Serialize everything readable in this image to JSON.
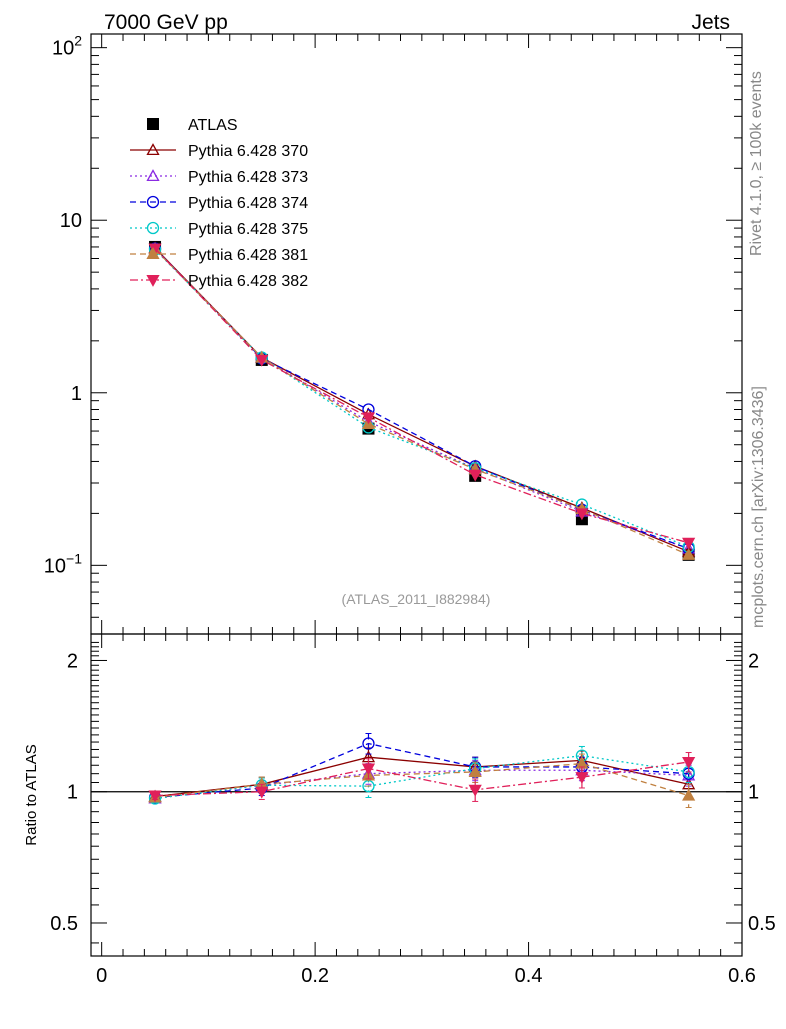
{
  "header": {
    "left": "7000 GeV pp",
    "right": "Jets"
  },
  "side_text": {
    "rivet": "Rivet 4.1.0, ≥ 100k events",
    "source": "mcplots.cern.ch [arXiv:1306.3436]"
  },
  "watermark": "(ATLAS_2011_I882984)",
  "chart_data": [
    {
      "type": "line",
      "panel": "main",
      "yscale": "log",
      "xlim": [
        -0.01,
        0.6
      ],
      "ylim": [
        0.04,
        120
      ],
      "xlabel": "",
      "ylabel": "",
      "y_tick_labels": [
        {
          "value": 100,
          "base": "10",
          "exp": "2"
        },
        {
          "value": 10,
          "base": "10",
          "exp": ""
        },
        {
          "value": 1,
          "base": "1",
          "exp": ""
        },
        {
          "value": 0.1,
          "base": "10",
          "exp": "−1"
        }
      ],
      "x": [
        0.05,
        0.15,
        0.25,
        0.35,
        0.45,
        0.55
      ],
      "reference": {
        "name": "ATLAS",
        "color": "#000000",
        "values": [
          7.0,
          1.55,
          0.62,
          0.33,
          0.185,
          0.115
        ]
      },
      "series": [
        {
          "name": "Pythia 6.428 370",
          "color": "#8b0000",
          "marker": "triangle-open",
          "dash": "",
          "values": [
            6.9,
            1.6,
            0.75,
            0.375,
            0.215,
            0.12
          ]
        },
        {
          "name": "Pythia 6.428 373",
          "color": "#8a2be2",
          "marker": "triangle-open",
          "dash": "2,3",
          "values": [
            6.8,
            1.6,
            0.68,
            0.365,
            0.205,
            0.125
          ]
        },
        {
          "name": "Pythia 6.428 374",
          "color": "#0000dd",
          "marker": "circle-open",
          "dash": "6,4",
          "values": [
            6.85,
            1.58,
            0.8,
            0.375,
            0.21,
            0.125
          ]
        },
        {
          "name": "Pythia 6.428 375",
          "color": "#00c8c8",
          "marker": "circle-open",
          "dash": "2,3",
          "values": [
            6.75,
            1.6,
            0.63,
            0.365,
            0.225,
            0.128
          ]
        },
        {
          "name": "Pythia 6.428 381",
          "color": "#c08040",
          "marker": "triangle-filled",
          "dash": "6,4",
          "values": [
            6.8,
            1.6,
            0.66,
            0.36,
            0.212,
            0.115
          ]
        },
        {
          "name": "Pythia 6.428 382",
          "color": "#e0205a",
          "marker": "triangle-down-filled",
          "dash": "8,3,2,3",
          "values": [
            6.85,
            1.55,
            0.72,
            0.335,
            0.2,
            0.135
          ]
        }
      ]
    },
    {
      "type": "line",
      "panel": "ratio",
      "yscale": "log",
      "xlim": [
        -0.01,
        0.6
      ],
      "ylim": [
        0.42,
        2.3
      ],
      "xlabel": "",
      "ylabel": "Ratio to ATLAS",
      "x_tick_labels": [
        {
          "value": 0,
          "label": "0"
        },
        {
          "value": 0.2,
          "label": "0.2"
        },
        {
          "value": 0.4,
          "label": "0.4"
        },
        {
          "value": 0.6,
          "label": "0.6"
        }
      ],
      "y_tick_labels": [
        {
          "value": 2,
          "label": "2"
        },
        {
          "value": 1,
          "label": "1"
        },
        {
          "value": 0.5,
          "label": "0.5"
        }
      ],
      "x": [
        0.05,
        0.15,
        0.25,
        0.35,
        0.45,
        0.55
      ],
      "series": [
        {
          "name": "Pythia 6.428 370",
          "values": [
            0.975,
            1.04,
            1.2,
            1.14,
            1.18,
            1.04
          ],
          "errors": [
            0.02,
            0.04,
            0.06,
            0.06,
            0.06,
            0.06
          ]
        },
        {
          "name": "Pythia 6.428 373",
          "values": [
            0.965,
            1.035,
            1.1,
            1.12,
            1.12,
            1.09
          ],
          "errors": [
            0.02,
            0.04,
            0.06,
            0.06,
            0.06,
            0.06
          ]
        },
        {
          "name": "Pythia 6.428 374",
          "values": [
            0.97,
            1.02,
            1.29,
            1.14,
            1.14,
            1.1
          ],
          "errors": [
            0.02,
            0.04,
            0.07,
            0.06,
            0.06,
            0.06
          ]
        },
        {
          "name": "Pythia 6.428 375",
          "values": [
            0.965,
            1.035,
            1.03,
            1.13,
            1.21,
            1.11
          ],
          "errors": [
            0.02,
            0.04,
            0.06,
            0.06,
            0.06,
            0.06
          ]
        },
        {
          "name": "Pythia 6.428 381",
          "values": [
            0.97,
            1.04,
            1.09,
            1.11,
            1.16,
            0.98
          ],
          "errors": [
            0.02,
            0.04,
            0.06,
            0.06,
            0.06,
            0.06
          ]
        },
        {
          "name": "Pythia 6.428 382",
          "values": [
            0.98,
            1.0,
            1.13,
            1.01,
            1.08,
            1.17
          ],
          "errors": [
            0.02,
            0.04,
            0.06,
            0.06,
            0.06,
            0.06
          ]
        }
      ]
    }
  ]
}
